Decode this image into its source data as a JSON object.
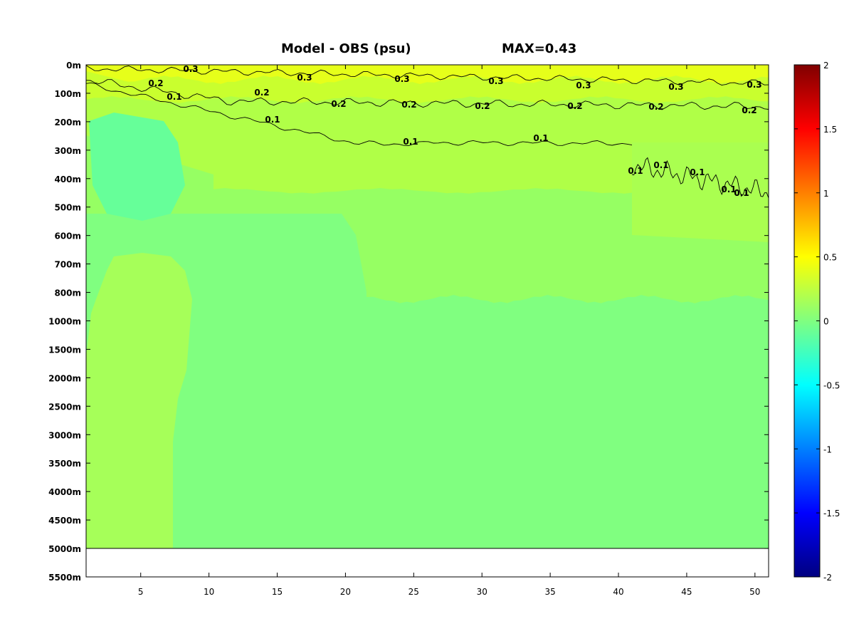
{
  "chart_data": {
    "type": "heatmap",
    "title": "Model - OBS (psu)",
    "subtitle": "MAX=0.43",
    "xlabel": "",
    "ylabel": "",
    "x_ticks": [
      5,
      10,
      15,
      20,
      25,
      30,
      35,
      40,
      45,
      50
    ],
    "xlim": [
      1,
      51
    ],
    "y_ticks": [
      "0m",
      "100m",
      "200m",
      "300m",
      "400m",
      "500m",
      "600m",
      "700m",
      "800m",
      "1000m",
      "1500m",
      "2000m",
      "2500m",
      "3000m",
      "3500m",
      "4000m",
      "4500m",
      "5000m",
      "5500m"
    ],
    "data_bottom_label": "5000m",
    "colorbar": {
      "min": -2,
      "max": 2,
      "ticks": [
        "2",
        "1.5",
        "1",
        "0.5",
        "0",
        "-0.5",
        "-1",
        "-1.5",
        "-2"
      ],
      "colormap": "jet"
    },
    "contour_levels": [
      0.1,
      0.2,
      0.3
    ],
    "contour_labels": {
      "c03": [
        "0.3",
        "0.3",
        "0.3",
        "0.3",
        "0.3",
        "0.3",
        "0.3",
        "0.3"
      ],
      "c02": [
        "0.2",
        "0.2",
        "0.2",
        "0.2",
        "0.2",
        "0.2",
        "0.2",
        "0.2",
        "0.2"
      ],
      "c01": [
        "0.1",
        "0.1",
        "0.1",
        "0.1",
        "0.1",
        "0.1",
        "0.1",
        "0.1",
        "0.1",
        "0.1"
      ]
    },
    "colors": {
      "surface": "#e6ff1a",
      "near_surface": "#c9ff2e",
      "upper": "#b0ff47",
      "mid_green": "#96ff63",
      "deep": "#80ff80",
      "cool_patch": "#66ff99",
      "deep_west": "#a6ff59",
      "east_patch": "#aaff50"
    }
  }
}
